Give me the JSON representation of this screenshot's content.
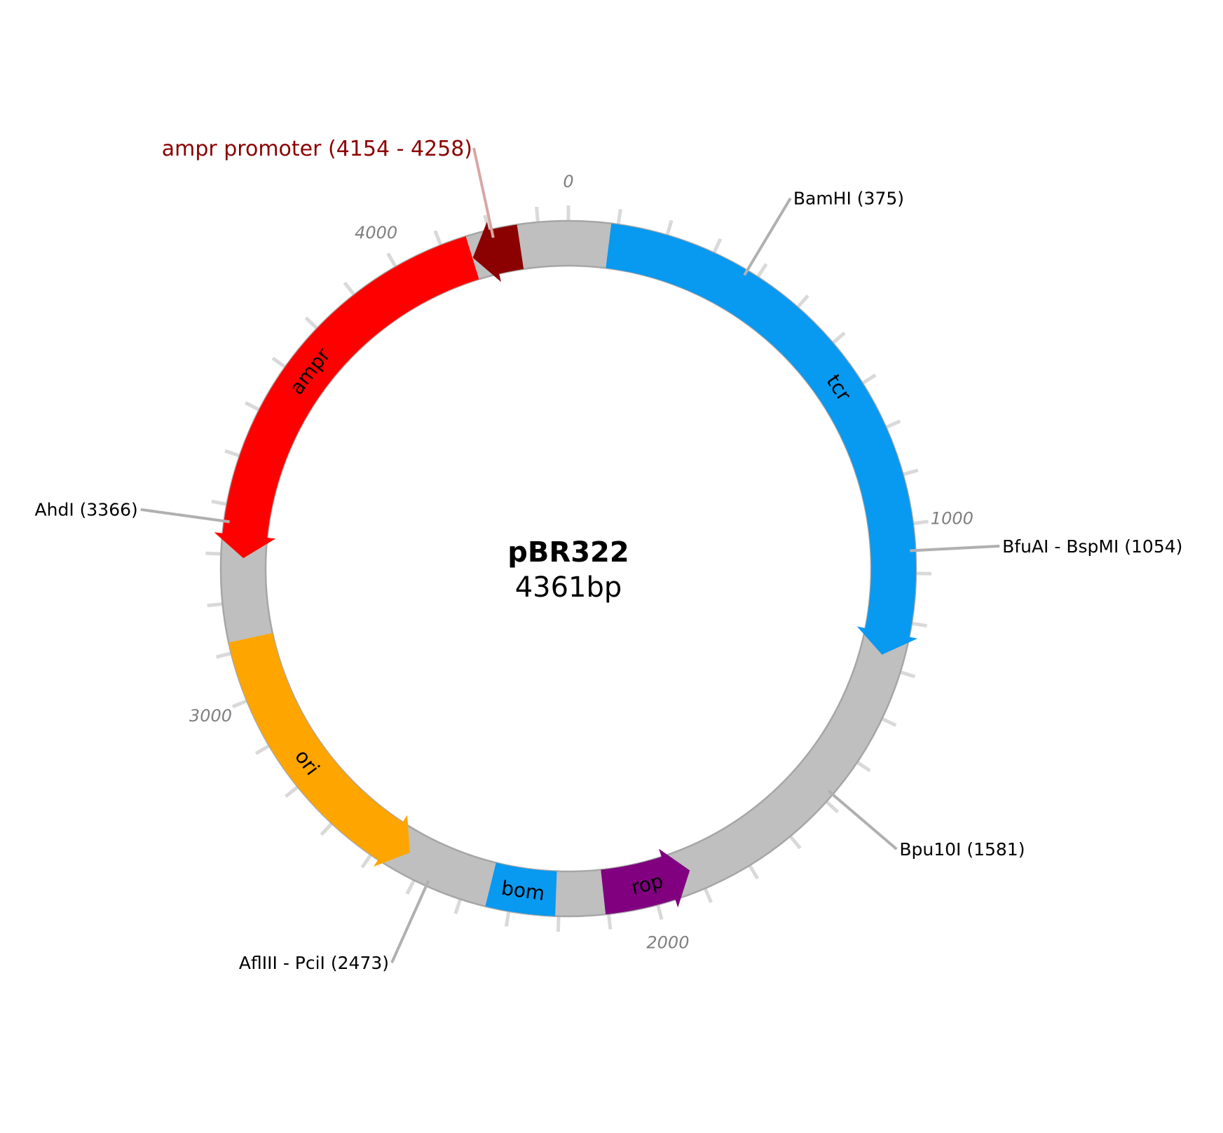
{
  "plasmid": {
    "name": "pBR322",
    "length_label": "4361bp",
    "length": 4361
  },
  "colors": {
    "backbone": "#bfbfbf",
    "backbone_edge": "#a6a6a6",
    "tick": "#d9d9d9",
    "site_line": "#b0b0b0",
    "tick_label": "#808080"
  },
  "ticks": {
    "minor_step": 100,
    "labels": [
      {
        "position": 0,
        "text": "0"
      },
      {
        "position": 1000,
        "text": "1000"
      },
      {
        "position": 2000,
        "text": "2000"
      },
      {
        "position": 3000,
        "text": "3000"
      },
      {
        "position": 4000,
        "text": "4000"
      }
    ]
  },
  "features": [
    {
      "name": "tcr",
      "label": "tcr",
      "start": 86,
      "end": 1276,
      "strand": 1,
      "color": "#0899f0",
      "show_label": true
    },
    {
      "name": "rop",
      "label": "rop",
      "start": 1915,
      "end": 2106,
      "strand": -1,
      "color": "#800080",
      "show_label": true
    },
    {
      "name": "bom",
      "label": "bom",
      "start": 2207,
      "end": 2348,
      "strand": 0,
      "color": "#0899f0",
      "show_label": true
    },
    {
      "name": "ori",
      "label": "ori",
      "start": 2534,
      "end": 3122,
      "strand": -1,
      "color": "#ffa500",
      "show_label": true
    },
    {
      "name": "ampr",
      "label": "ampr",
      "start": 3293,
      "end": 4153,
      "strand": -1,
      "color": "#ff0000",
      "show_label": true
    },
    {
      "name": "ampr-promoter",
      "label": "ampr promoter (4154 - 4258)",
      "start": 4154,
      "end": 4258,
      "strand": -1,
      "color": "#8b0000",
      "show_label": false
    }
  ],
  "callout": {
    "text": "ampr promoter (4154 - 4258)",
    "color": "#8b0000",
    "line_color": "#d9a6a6"
  },
  "sites": [
    {
      "name": "BamHI",
      "label": "BamHI (375)",
      "position": 375
    },
    {
      "name": "BfuAI - BspMI",
      "label": "BfuAI - BspMI (1054)",
      "position": 1054
    },
    {
      "name": "Bpu10I",
      "label": "Bpu10I (1581)",
      "position": 1581
    },
    {
      "name": "AflIII - PciI",
      "label": "AflIII - PciI (2473)",
      "position": 2473
    },
    {
      "name": "AhdI",
      "label": "AhdI (3366)",
      "position": 3366
    }
  ]
}
